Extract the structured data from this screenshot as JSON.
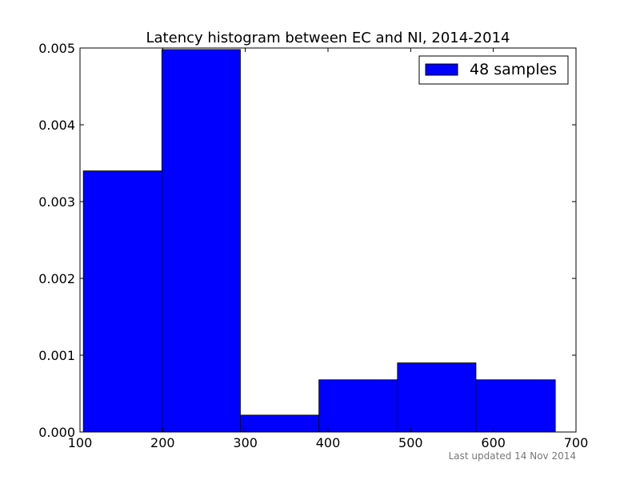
{
  "chart_data": {
    "type": "bar",
    "title": "Latency histogram between EC and NI, 2014-2014",
    "xlabel": "",
    "ylabel": "",
    "bin_edges": [
      104,
      199,
      294,
      389,
      484,
      579,
      675
    ],
    "values": [
      0.0034,
      0.00498,
      0.00022,
      0.00068,
      0.0009,
      0.00068
    ],
    "xlim": [
      100,
      700
    ],
    "ylim": [
      0,
      0.005
    ],
    "x_ticks": [
      100,
      200,
      300,
      400,
      500,
      600,
      700
    ],
    "x_tick_labels": [
      "100",
      "200",
      "300",
      "400",
      "500",
      "600",
      "700"
    ],
    "y_ticks": [
      0,
      0.001,
      0.002,
      0.003,
      0.004,
      0.005
    ],
    "y_tick_labels": [
      "0.000",
      "0.001",
      "0.002",
      "0.003",
      "0.004",
      "0.005"
    ],
    "grid": false,
    "legend": {
      "placement": "top-right",
      "entries": [
        {
          "label": "48 samples",
          "color": "#0000ff"
        }
      ]
    },
    "bar_color": "#0000ff",
    "bar_edge_color": "#000000"
  },
  "footer": {
    "text": "Last updated 14 Nov 2014"
  }
}
